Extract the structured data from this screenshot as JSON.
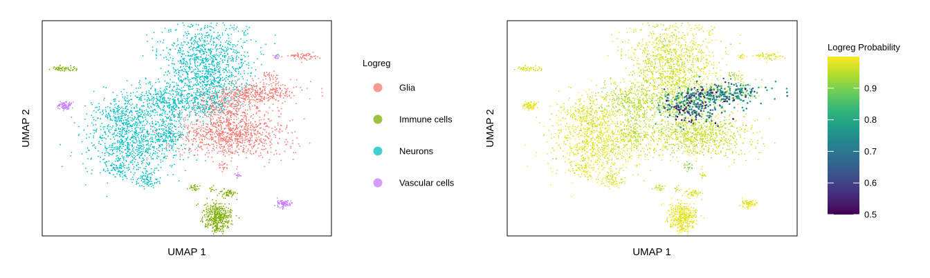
{
  "colors": {
    "Glia": "#F8766D",
    "Immune cells": "#7CAE00",
    "Neurons": "#00BFC4",
    "Vascular cells": "#C77CFF"
  },
  "viridis": [
    "#440154",
    "#482878",
    "#3E4A89",
    "#31688E",
    "#26828E",
    "#1F9E89",
    "#35B779",
    "#6DCD59",
    "#B4DE2C",
    "#FDE725"
  ],
  "chart_data": [
    {
      "type": "scatter",
      "xlabel": "UMAP 1",
      "ylabel": "UMAP 2",
      "color_by": "categorical",
      "legend_title": "Logreg",
      "legend_position": "right",
      "categories": [
        "Glia",
        "Immune cells",
        "Neurons",
        "Vascular cells"
      ],
      "grid": false
    },
    {
      "type": "scatter",
      "xlabel": "UMAP 1",
      "ylabel": "UMAP 2",
      "color_by": "continuous",
      "legend_title": "Logreg Probability",
      "legend_position": "right",
      "colorbar_range": [
        0.5,
        1.0
      ],
      "colorbar_ticks": [
        "0.5",
        "0.6",
        "0.7",
        "0.8",
        "0.9"
      ],
      "grid": false
    }
  ]
}
